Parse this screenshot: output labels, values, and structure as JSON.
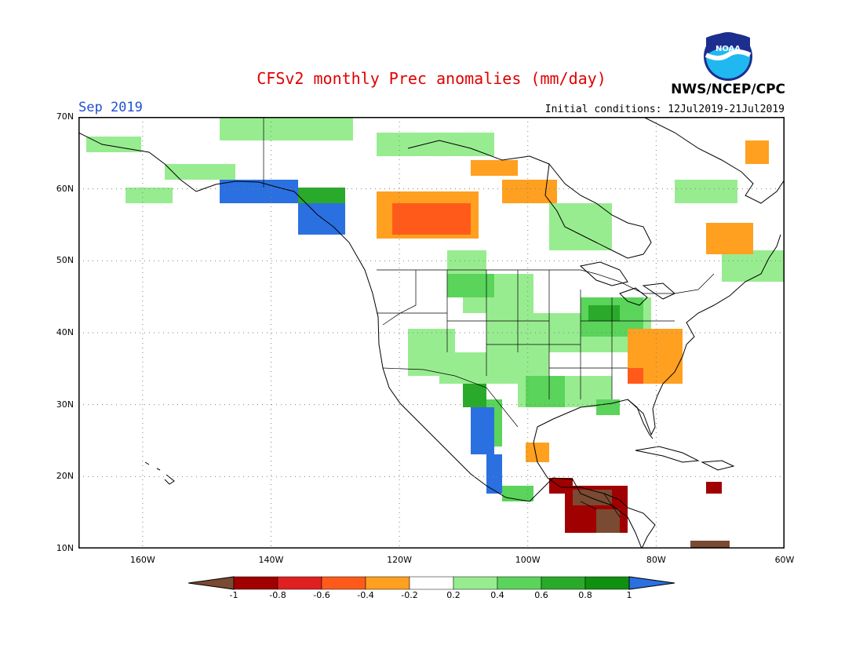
{
  "title": "CFSv2 monthly Prec anomalies (mm/day)",
  "month": "Sep 2019",
  "initial_conditions": "Initial conditions: 12Jul2019-21Jul2019",
  "organization": "NWS/NCEP/CPC",
  "logo_text": "NOAA",
  "map": {
    "projection": "lat-lon",
    "lon_range": [
      -170,
      -60
    ],
    "lat_range": [
      10,
      70
    ],
    "grid": "dotted",
    "lat_ticks": [
      "70N",
      "60N",
      "50N",
      "40N",
      "30N",
      "20N",
      "10N"
    ],
    "lon_ticks": [
      "160W",
      "140W",
      "120W",
      "100W",
      "80W",
      "60W"
    ]
  },
  "legend": {
    "labels": [
      "-1",
      "-0.8",
      "-0.6",
      "-0.4",
      "-0.2",
      "0.2",
      "0.4",
      "0.6",
      "0.8",
      "1"
    ],
    "colors": [
      "#7a4a32",
      "#a00000",
      "#e02020",
      "#ff5a1a",
      "#ffa020",
      "#ffffff",
      "#98ec90",
      "#5ad45a",
      "#2aaa2a",
      "#109010",
      "#2a70e0"
    ]
  },
  "anomaly_regions": [
    {
      "label": "Alaska Panhandle / BC coast",
      "category": "1",
      "color": "#2a70e0"
    },
    {
      "label": "Western Canada",
      "category": "-0.6",
      "color": "#ff5a1a"
    },
    {
      "label": "Southeast US coast",
      "category": "-0.4",
      "color": "#ffa020"
    },
    {
      "label": "Western Mexico coast",
      "category": "1",
      "color": "#2a70e0"
    },
    {
      "label": "Central America",
      "category": "-1",
      "color": "#7a4a32"
    },
    {
      "label": "Ohio Valley / Midwest",
      "category": "0.6",
      "color": "#5ad45a"
    },
    {
      "label": "Labrador / Quebec",
      "category": "-0.4",
      "color": "#ffa020"
    }
  ]
}
